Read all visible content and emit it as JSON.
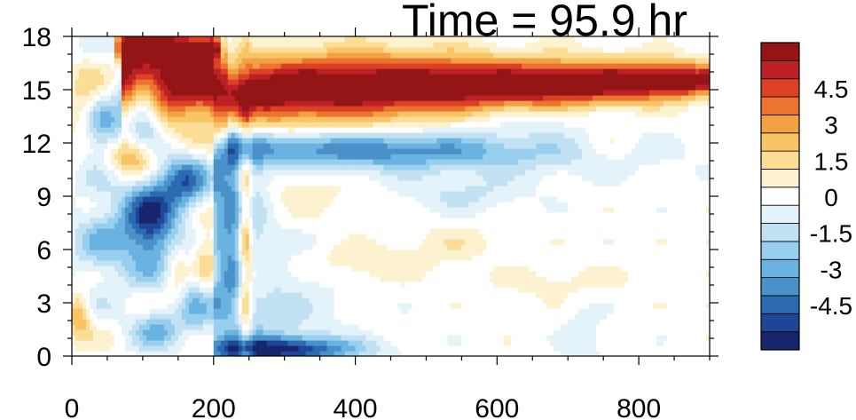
{
  "chart_data": {
    "type": "heatmap",
    "title": "Time = 95.9 hr",
    "xlabel": "",
    "ylabel": "",
    "xlim": [
      0,
      900
    ],
    "ylim": [
      0,
      18
    ],
    "x_ticks": [
      {
        "value": 0,
        "label": "0"
      },
      {
        "value": 200,
        "label": "200"
      },
      {
        "value": 400,
        "label": "400"
      },
      {
        "value": 600,
        "label": "600"
      },
      {
        "value": 800,
        "label": "800"
      }
    ],
    "y_ticks": [
      {
        "value": 0,
        "label": "0"
      },
      {
        "value": 3,
        "label": "3"
      },
      {
        "value": 6,
        "label": "6"
      },
      {
        "value": 9,
        "label": "9"
      },
      {
        "value": 12,
        "label": "12"
      },
      {
        "value": 15,
        "label": "15"
      },
      {
        "value": 18,
        "label": "18"
      }
    ],
    "colorbar": {
      "min": -6,
      "max": 6,
      "step": 0.75,
      "labels": [
        {
          "value": 4.5,
          "label": "4.5"
        },
        {
          "value": 3,
          "label": "3"
        },
        {
          "value": 1.5,
          "label": "1.5"
        },
        {
          "value": 0,
          "label": "0"
        },
        {
          "value": -1.5,
          "label": "-1.5"
        },
        {
          "value": -3,
          "label": "-3"
        },
        {
          "value": -4.5,
          "label": "-4.5"
        }
      ],
      "colors": [
        "#17266b",
        "#1f4596",
        "#2c6bb1",
        "#4a90c9",
        "#6ab2e0",
        "#98cfee",
        "#c2e2f4",
        "#e4f2fa",
        "#ffffff",
        "#fdf2cf",
        "#fbdd96",
        "#f9c466",
        "#f4a044",
        "#ec7330",
        "#dc4125",
        "#bd2125",
        "#931515"
      ]
    }
  }
}
